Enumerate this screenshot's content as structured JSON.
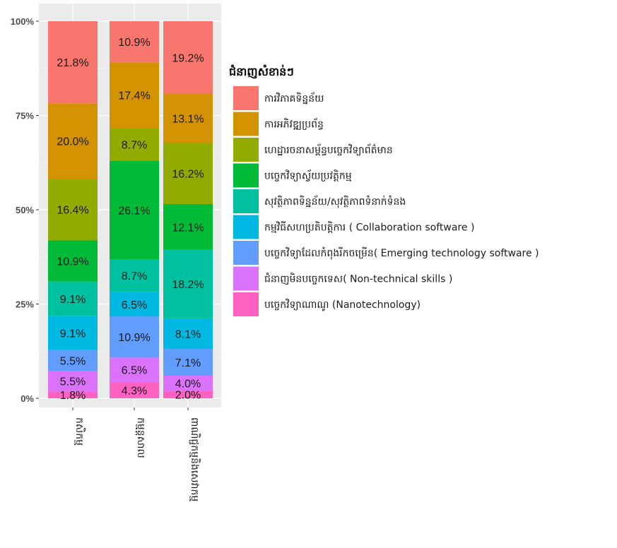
{
  "chart_data": {
    "type": "bar",
    "stacked": true,
    "percent": true,
    "categories": [
      "កសិកម្ម",
      "កម្មន្តសាល",
      "ពាណិជ្ជកម្មនិងសេវាកម្ម"
    ],
    "yticks": [
      "0%",
      "25%",
      "50%",
      "75%",
      "100%"
    ],
    "ylim": [
      0,
      100
    ],
    "legend_title": "ជំនាញសំខាន់ៗ",
    "legend_position": "right",
    "series": [
      {
        "name": "ការវិភាគទិន្នន័យ",
        "color": "#F8766D",
        "values": [
          21.8,
          10.9,
          19.2
        ],
        "labels": [
          "21.8%",
          "10.9%",
          "19.2%"
        ]
      },
      {
        "name": "ការអភិវឌ្ឍប្រព័ន្ធ",
        "color": "#D39200",
        "values": [
          20.0,
          17.4,
          13.1
        ],
        "labels": [
          "20.0%",
          "17.4%",
          "13.1%"
        ]
      },
      {
        "name": "ហេដ្ឋារចនាសម្ព័ន្ធបច្ចេកវិទ្យាព័ត៌មាន",
        "color": "#93AA00",
        "values": [
          16.4,
          8.7,
          16.2
        ],
        "labels": [
          "16.4%",
          "8.7%",
          "16.2%"
        ]
      },
      {
        "name": "បច្ចេកវិទ្យាស្វ័យប្រវត្តិកម្ម",
        "color": "#00BA38",
        "values": [
          10.9,
          26.1,
          12.1
        ],
        "labels": [
          "10.9%",
          "26.1%",
          "12.1%"
        ]
      },
      {
        "name": "សុវត្ថិភាពទិន្នន័យ/សុវត្ថិភាពទំនាក់ទំនង",
        "color": "#00C19F",
        "values": [
          9.1,
          8.7,
          18.2
        ],
        "labels": [
          "9.1%",
          "8.7%",
          "18.2%"
        ]
      },
      {
        "name": "កម្មវិធីសហប្រតិបត្តិការ ( Collaboration software )",
        "color": "#00B9E3",
        "values": [
          9.1,
          6.5,
          8.1
        ],
        "labels": [
          "9.1%",
          "6.5%",
          "8.1%"
        ]
      },
      {
        "name": "បច្ចេកវិទ្យាដែលកំពុងរីកចម្រើន( Emerging technology software )",
        "color": "#619CFF",
        "values": [
          5.5,
          10.9,
          7.1
        ],
        "labels": [
          "5.5%",
          "10.9%",
          "7.1%"
        ]
      },
      {
        "name": "ជំនាញមិនបច្ចេកទេស( Non-technical skills )",
        "color": "#DB72FB",
        "values": [
          5.5,
          6.5,
          4.0
        ],
        "labels": [
          "5.5%",
          "6.5%",
          "4.0%"
        ]
      },
      {
        "name": "បច្ចេកវិទ្យាណាណូ (Nanotechnology)",
        "color": "#FF61C3",
        "values": [
          1.8,
          4.3,
          2.0
        ],
        "labels": [
          "1.8%",
          "4.3%",
          "2.0%"
        ]
      }
    ]
  }
}
